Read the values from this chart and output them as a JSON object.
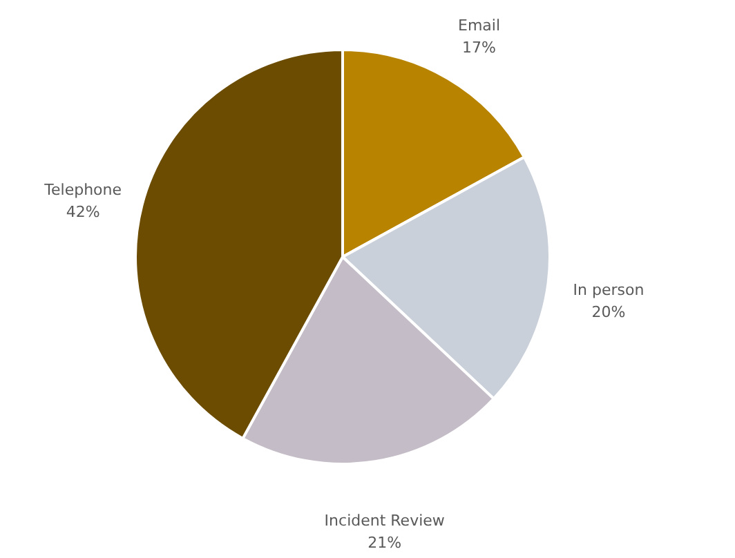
{
  "chart_data": {
    "type": "pie",
    "categories": [
      "Email",
      "In person",
      "Incident Review",
      "Telephone"
    ],
    "values": [
      17,
      20,
      21,
      42
    ],
    "value_labels": [
      "17%",
      "20%",
      "21%",
      "42%"
    ],
    "colors": [
      "#b88400",
      "#cad0da",
      "#c4bcc6",
      "#6b4c00"
    ]
  }
}
